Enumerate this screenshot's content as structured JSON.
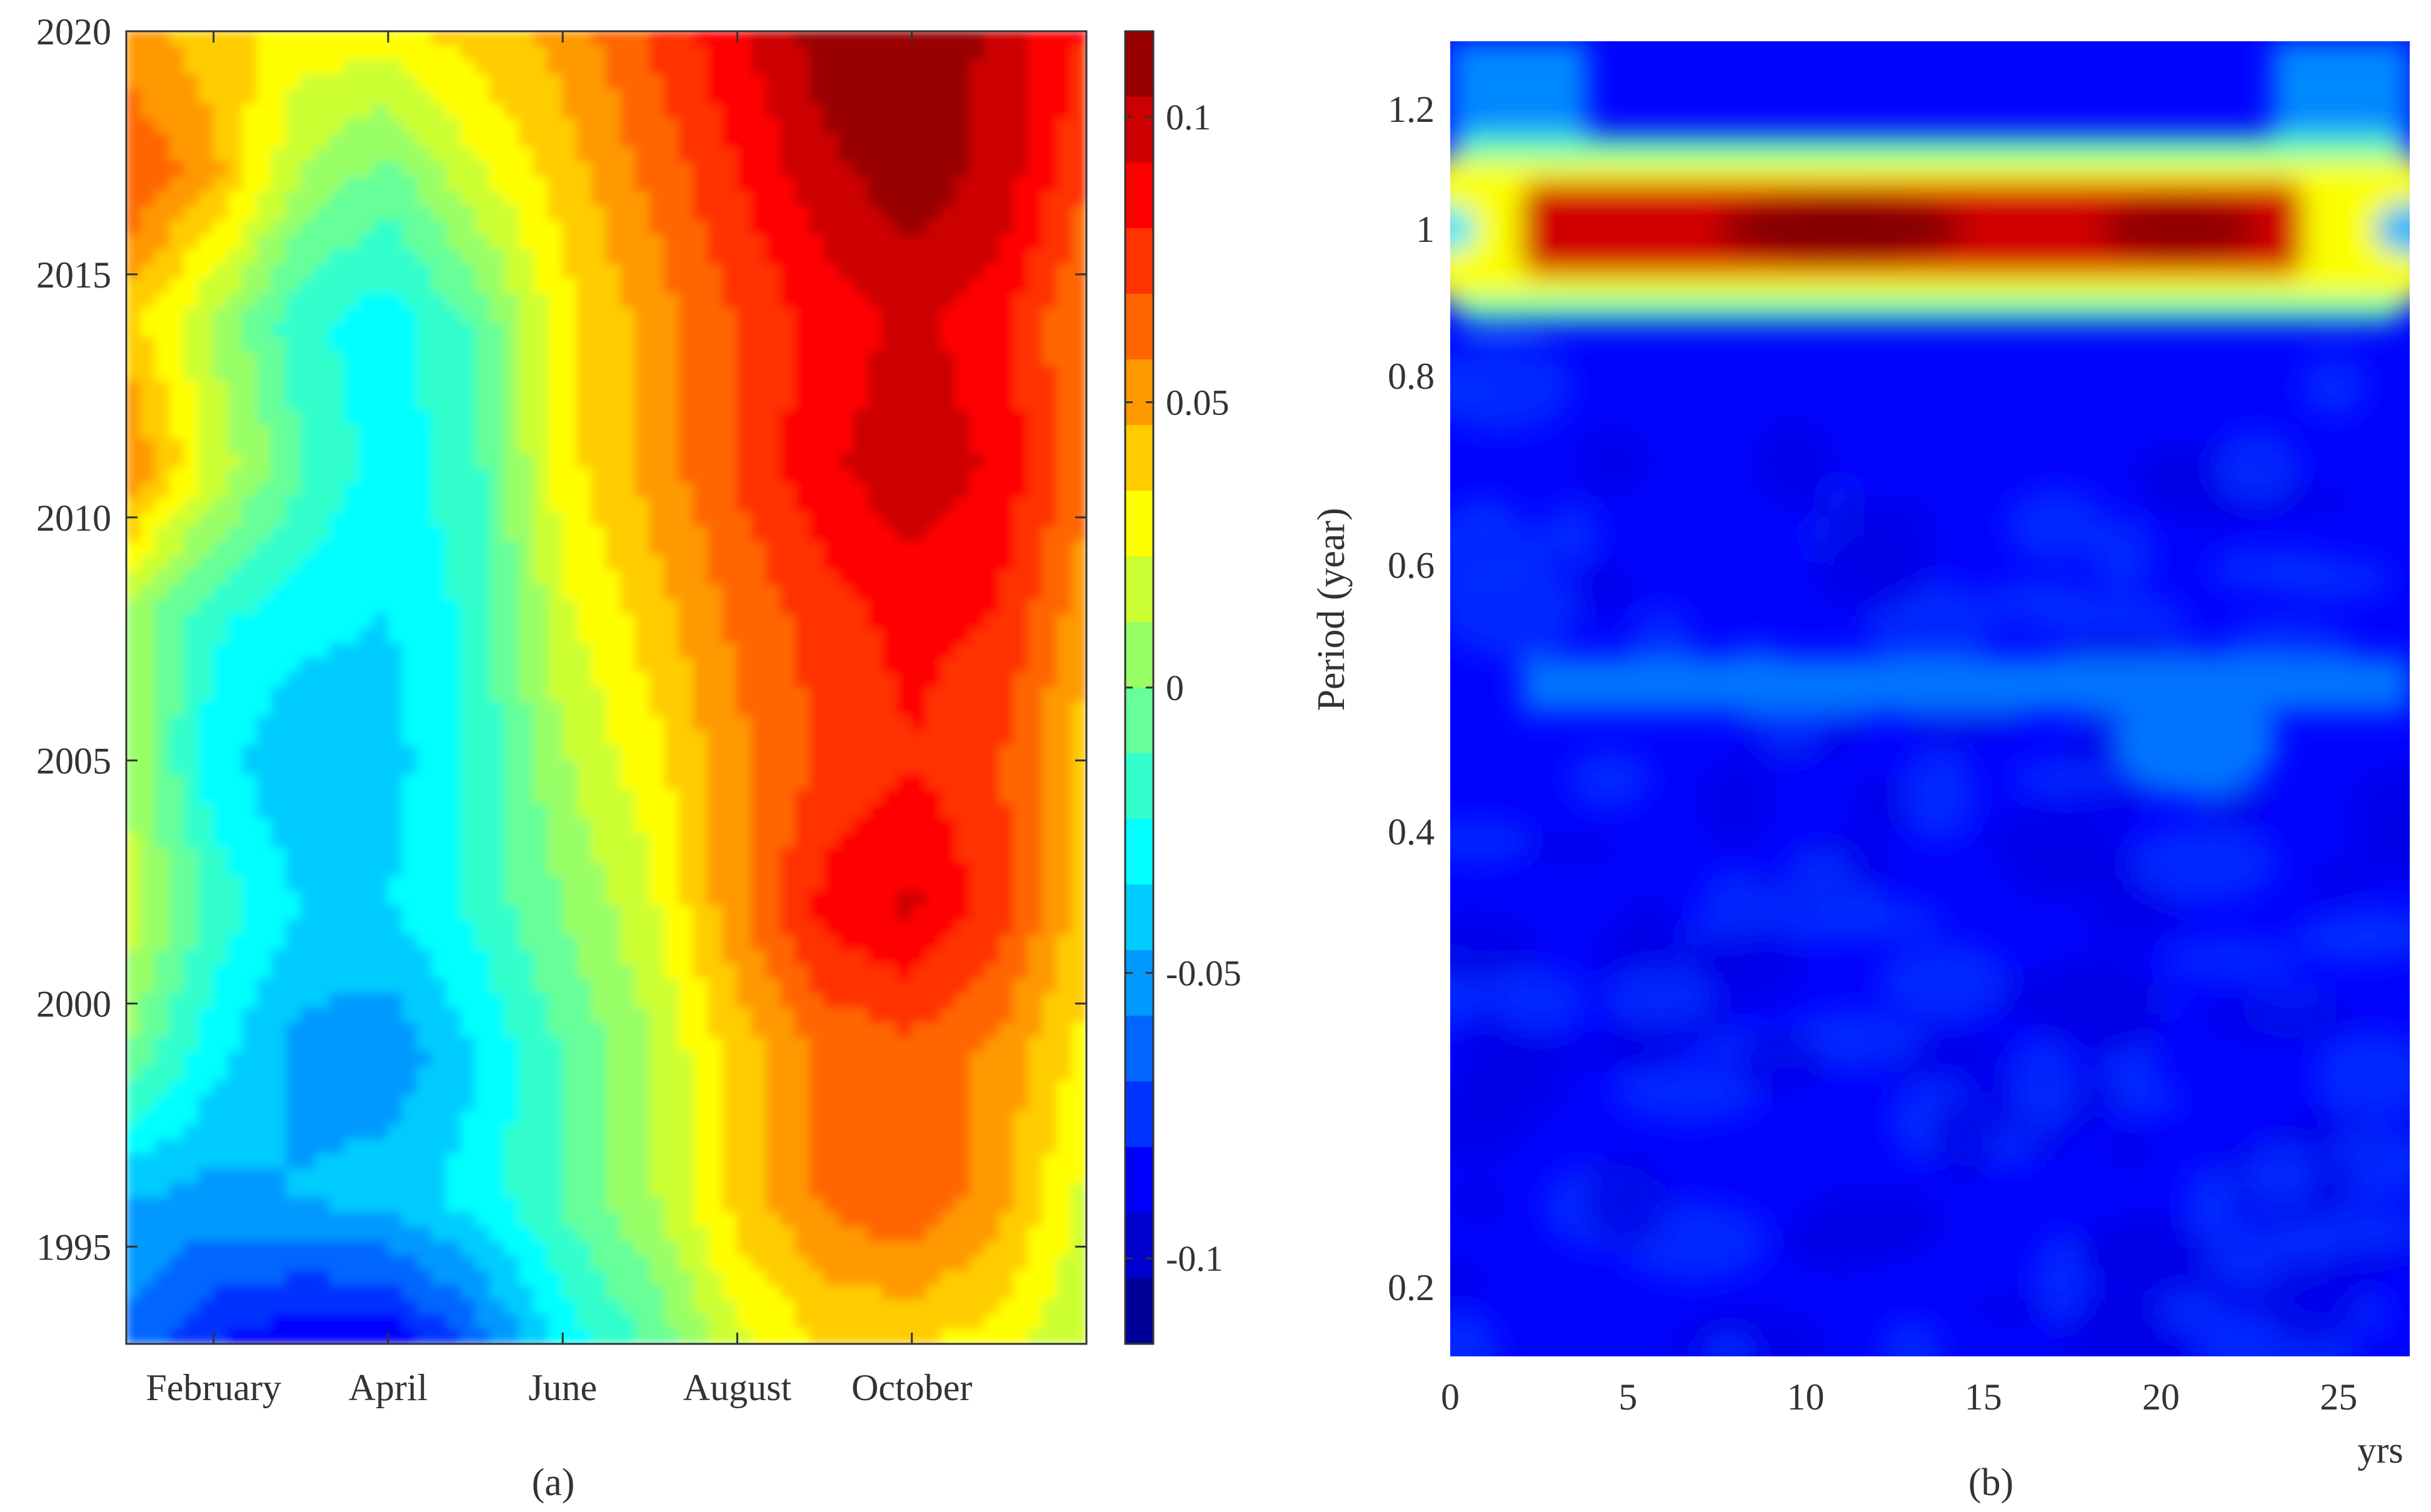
{
  "chart_data": [
    {
      "panel_label": "(a)",
      "type": "heatmap",
      "subtype": "filled-contour",
      "title": "",
      "xlabel": "",
      "ylabel": "",
      "x_tick_labels": [
        "February",
        "April",
        "June",
        "August",
        "October"
      ],
      "x_tick_values": [
        2,
        4,
        6,
        8,
        10
      ],
      "xlim": [
        1,
        12
      ],
      "y_tick_labels": [
        "1995",
        "2000",
        "2005",
        "2010",
        "2015",
        "2020"
      ],
      "y_tick_values": [
        1995,
        2000,
        2005,
        2010,
        2015,
        2020
      ],
      "ylim": [
        1993,
        2020
      ],
      "colorbar": {
        "colormap": "jet",
        "range": [
          -0.115,
          0.115
        ],
        "tick_labels": [
          "-0.1",
          "-0.05",
          "0",
          "0.05",
          "0.1"
        ],
        "tick_values": [
          -0.1,
          -0.05,
          0,
          0.05,
          0.1
        ]
      },
      "months": [
        1,
        2,
        3,
        4,
        5,
        6,
        7,
        8,
        9,
        10,
        11,
        12
      ],
      "years": [
        1993,
        1996,
        1999,
        2002,
        2005,
        2008,
        2011,
        2014,
        2017,
        2020
      ],
      "z": [
        [
          -0.06,
          -0.08,
          -0.09,
          -0.09,
          -0.065,
          -0.03,
          -0.01,
          0.02,
          0.035,
          0.035,
          0.03,
          0.01
        ],
        [
          -0.045,
          -0.05,
          -0.045,
          -0.04,
          -0.03,
          -0.01,
          0.01,
          0.04,
          0.06,
          0.07,
          0.05,
          0.02
        ],
        [
          0.0,
          -0.03,
          -0.05,
          -0.055,
          -0.035,
          -0.01,
          0.01,
          0.04,
          0.06,
          0.065,
          0.055,
          0.03
        ],
        [
          0.02,
          -0.015,
          -0.035,
          -0.035,
          -0.02,
          0.0,
          0.02,
          0.055,
          0.085,
          0.095,
          0.075,
          0.04
        ],
        [
          0.01,
          -0.03,
          -0.045,
          -0.04,
          -0.02,
          0.01,
          0.03,
          0.055,
          0.07,
          0.08,
          0.07,
          0.04
        ],
        [
          0.01,
          -0.02,
          -0.03,
          -0.035,
          -0.02,
          0.02,
          0.04,
          0.06,
          0.075,
          0.085,
          0.08,
          0.05
        ],
        [
          0.06,
          0.02,
          -0.01,
          -0.03,
          -0.015,
          0.03,
          0.05,
          0.07,
          0.09,
          0.1,
          0.09,
          0.06
        ],
        [
          0.04,
          0.01,
          -0.02,
          -0.03,
          -0.01,
          0.03,
          0.05,
          0.07,
          0.085,
          0.095,
          0.085,
          0.055
        ],
        [
          0.07,
          0.05,
          0.01,
          -0.005,
          0.02,
          0.04,
          0.06,
          0.08,
          0.1,
          0.11,
          0.1,
          0.07
        ],
        [
          0.05,
          0.04,
          0.03,
          0.03,
          0.04,
          0.05,
          0.07,
          0.09,
          0.11,
          0.115,
          0.1,
          0.08
        ]
      ]
    },
    {
      "panel_label": "(b)",
      "type": "heatmap",
      "subtype": "wavelet-power",
      "title": "",
      "xlabel": "yrs",
      "ylabel": "Period (year)",
      "x_tick_labels": [
        "0",
        "5",
        "10",
        "15",
        "20",
        "25"
      ],
      "x_tick_values": [
        0,
        5,
        10,
        15,
        20,
        25
      ],
      "xlim": [
        0,
        27
      ],
      "y_tick_labels": [
        "0.2",
        "0.4",
        "0.6",
        "0.8",
        "1",
        "1.2"
      ],
      "y_tick_values": [
        0.2,
        0.4,
        0.6,
        0.8,
        1.0,
        1.2
      ],
      "ylim": [
        0.18,
        1.33
      ],
      "y_scale": "log",
      "colormap": "jet",
      "features": [
        {
          "period": 1.0,
          "x_range": [
            2,
            24
          ],
          "peak_x": 11,
          "intensity": "max",
          "description": "strong annual band"
        },
        {
          "period": 0.5,
          "x_range": [
            2,
            27
          ],
          "intensity": "weak",
          "description": "semi-annual band"
        }
      ]
    }
  ],
  "panel_labels": {
    "a": "(a)",
    "b": "(b)"
  }
}
